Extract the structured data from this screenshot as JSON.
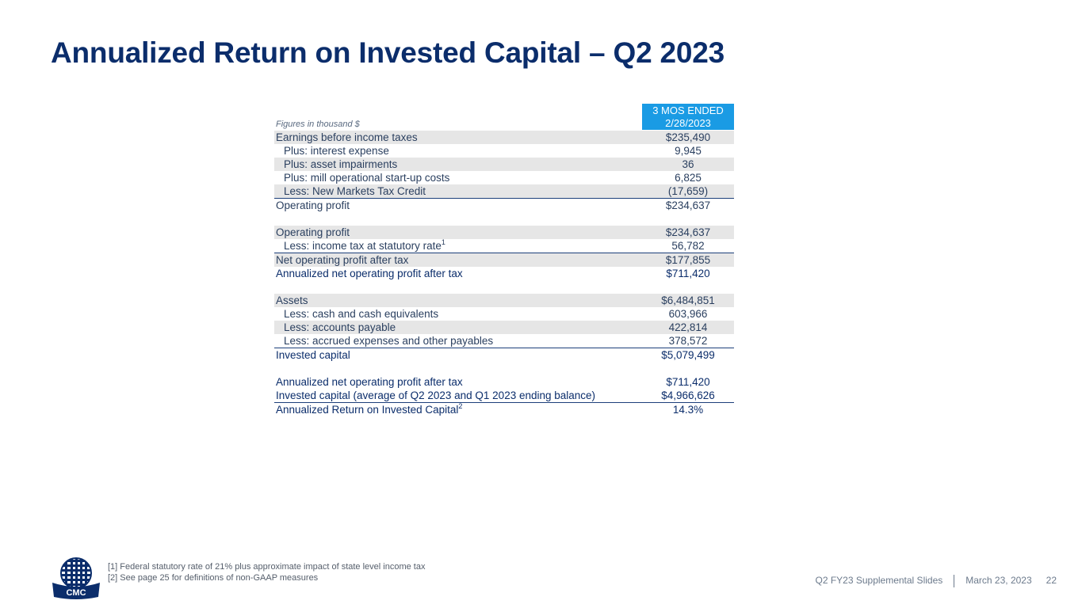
{
  "title": "Annualized Return on Invested Capital – Q2 2023",
  "table": {
    "note": "Figures in thousand $",
    "col_header_line1": "3 MOS ENDED",
    "col_header_line2": "2/28/2023",
    "rows": [
      {
        "label": "Earnings before income taxes",
        "value": "$235,490"
      },
      {
        "label": "Plus: interest expense",
        "value": "9,945"
      },
      {
        "label": "Plus: asset impairments",
        "value": "36"
      },
      {
        "label": "Plus: mill operational start-up costs",
        "value": "6,825"
      },
      {
        "label": "Less: New Markets Tax Credit",
        "value": "(17,659)"
      },
      {
        "label": "Operating profit",
        "value": "$234,637"
      },
      {
        "label": "Operating profit",
        "value": "$234,637"
      },
      {
        "label": "Less: income tax at statutory rate",
        "sup": "1",
        "value": "56,782"
      },
      {
        "label": "Net operating profit after tax",
        "value": "$177,855"
      },
      {
        "label": "Annualized net operating profit after tax",
        "value": "$711,420"
      },
      {
        "label": "Assets",
        "value": "$6,484,851"
      },
      {
        "label": "Less: cash and cash equivalents",
        "value": "603,966"
      },
      {
        "label": "Less: accounts payable",
        "value": "422,814"
      },
      {
        "label": "Less: accrued expenses and other payables",
        "value": "378,572"
      },
      {
        "label": "Invested capital",
        "value": "$5,079,499"
      },
      {
        "label": "Annualized net operating profit after tax",
        "value": "$711,420"
      },
      {
        "label": "Invested capital (average of Q2 2023 and Q1 2023 ending balance)",
        "value": "$4,966,626"
      },
      {
        "label": "Annualized Return on Invested Capital",
        "sup": "2",
        "value": "14.3%"
      }
    ]
  },
  "footnotes": [
    "[1] Federal statutory rate of 21% plus approximate impact of state level income tax",
    "[2] See page 25 for definitions of non-GAAP measures"
  ],
  "logo_text": "CMC",
  "footer": {
    "deck": "Q2 FY23 Supplemental Slides",
    "date": "March 23, 2023",
    "page": "22"
  },
  "colors": {
    "title": "#0b2d6b",
    "header_fill": "#1a9be4",
    "row_shade": "#e6e6e6"
  }
}
